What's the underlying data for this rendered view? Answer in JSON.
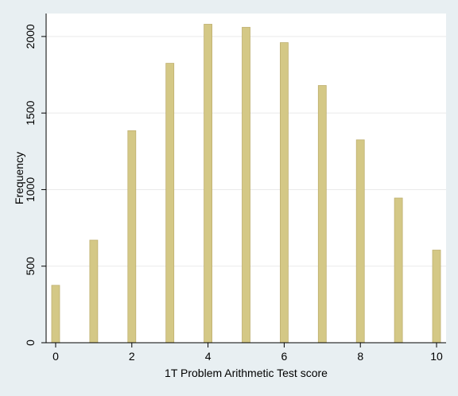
{
  "chart_data": {
    "type": "bar",
    "title": "",
    "xlabel": "1T Problem Arithmetic Test score",
    "ylabel": "Frequency",
    "x": [
      0,
      1,
      2,
      3,
      4,
      5,
      6,
      7,
      8,
      9,
      10
    ],
    "values": [
      375,
      670,
      1385,
      1825,
      2080,
      2060,
      1960,
      1680,
      1325,
      945,
      605
    ],
    "xlim": [
      -0.25,
      10.25
    ],
    "ylim": [
      0,
      2150
    ],
    "xticks": [
      0,
      2,
      4,
      6,
      8,
      10
    ],
    "yticks": [
      0,
      500,
      1000,
      1500,
      2000
    ],
    "grid": true,
    "legend": "none",
    "colors": {
      "bar_fill": "#d4c886",
      "bar_stroke": "#bfb070",
      "plot_background": "#ffffff",
      "page_background": "#e8eff2",
      "gridline": "#eaeaea",
      "axis": "#000000"
    }
  }
}
